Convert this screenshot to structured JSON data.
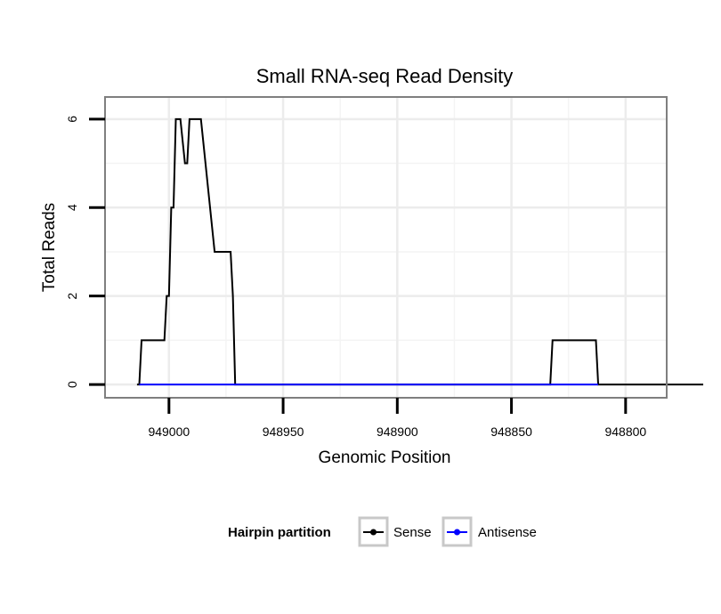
{
  "chart_data": {
    "type": "line",
    "title": "Small RNA-seq Read Density",
    "xlabel": "Genomic Position",
    "ylabel": "Total Reads",
    "x_reversed": true,
    "xlim": [
      949028,
      948782
    ],
    "ylim": [
      -0.3,
      6.5
    ],
    "x_ticks": [
      949000,
      948950,
      948900,
      948850,
      948800
    ],
    "x_tick_labels": [
      "949000",
      "948950",
      "948900",
      "948850",
      "948800"
    ],
    "x_minor_ticks": [
      948975,
      948925,
      948875,
      948825
    ],
    "y_ticks": [
      0,
      2,
      4,
      6
    ],
    "y_tick_labels": [
      "0",
      "2",
      "4",
      "6"
    ],
    "y_minor_ticks": [
      1,
      3,
      5
    ],
    "grid": true,
    "legend": {
      "title": "Hairpin partition",
      "position": "bottom",
      "entries": [
        {
          "name": "Sense",
          "color": "#000000"
        },
        {
          "name": "Antisense",
          "color": "#0000ff"
        }
      ]
    },
    "series": [
      {
        "name": "Sense",
        "color": "#000000",
        "x": [
          949014,
          949013,
          949012,
          949002,
          949001,
          949000,
          948999,
          948998,
          948997,
          948996,
          948995,
          948993,
          948992,
          948991,
          948990,
          948988,
          948987,
          948986,
          948980,
          948979,
          948973,
          948972,
          948971,
          948833,
          948832,
          948813,
          948812,
          948766
        ],
        "y": [
          0,
          0,
          1,
          1,
          2,
          2,
          4,
          4,
          6,
          6,
          6,
          5,
          5,
          6,
          6,
          6,
          6,
          6,
          3,
          3,
          3,
          2,
          0,
          0,
          1,
          1,
          0,
          0
        ]
      },
      {
        "name": "Antisense",
        "color": "#0000ff",
        "x": [
          949013,
          948973,
          948972,
          948833,
          948832,
          948812
        ],
        "y": [
          0,
          0,
          0,
          0,
          0,
          0
        ]
      }
    ]
  }
}
